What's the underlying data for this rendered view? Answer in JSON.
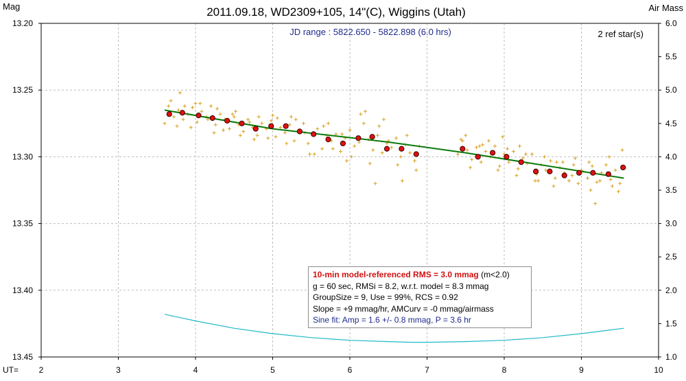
{
  "chart_data": {
    "type": "scatter",
    "title": "2011.09.18, WD2309+105, 14\"(C), Wiggins (Utah)",
    "ylabel": "Mag",
    "y2label": "Air Mass",
    "xlabel": "UT=",
    "xlim": [
      2,
      10
    ],
    "ylim": [
      13.45,
      13.2
    ],
    "y2lim": [
      1.0,
      6.0
    ],
    "x_ticks": [
      "2",
      "3",
      "4",
      "5",
      "6",
      "7",
      "8",
      "9",
      "10"
    ],
    "y_ticks": [
      "13.20",
      "13.25",
      "13.30",
      "13.35",
      "13.40",
      "13.45"
    ],
    "y2_ticks": [
      "6.0",
      "5.5",
      "5.0",
      "4.5",
      "4.0",
      "3.5",
      "3.0",
      "2.5",
      "2.0",
      "1.5",
      "1.0"
    ],
    "grid": true,
    "annotations": {
      "jd_range": "JD range : 5822.650 - 5822.898 (6.0 hrs)",
      "ref_stars": "2 ref star(s)"
    },
    "series": [
      {
        "name": "10-min averages",
        "color": "#e01010",
        "x": [
          3.66,
          3.83,
          4.04,
          4.22,
          4.41,
          4.6,
          4.78,
          4.98,
          5.17,
          5.35,
          5.53,
          5.72,
          5.91,
          6.11,
          6.29,
          6.48,
          6.67,
          6.86,
          7.46,
          7.66,
          7.85,
          8.03,
          8.22,
          8.41,
          8.59,
          8.78,
          8.97,
          9.15,
          9.35,
          9.54
        ],
        "y": [
          13.268,
          13.267,
          13.269,
          13.271,
          13.273,
          13.275,
          13.279,
          13.277,
          13.277,
          13.281,
          13.283,
          13.287,
          13.29,
          13.286,
          13.285,
          13.294,
          13.294,
          13.298,
          13.294,
          13.3,
          13.297,
          13.3,
          13.304,
          13.311,
          13.311,
          13.314,
          13.312,
          13.312,
          13.313,
          13.308
        ]
      },
      {
        "name": "model fit",
        "color": "#0a7a0a",
        "x": [
          3.6,
          5.0,
          6.5,
          7.5,
          9.55
        ],
        "y": [
          13.265,
          13.279,
          13.289,
          13.297,
          13.316
        ]
      },
      {
        "name": "air mass",
        "color": "#20b8c8",
        "axis": "y2",
        "x": [
          3.6,
          4.0,
          4.5,
          5.0,
          5.5,
          6.0,
          6.5,
          6.8,
          7.0,
          7.5,
          8.0,
          8.5,
          9.0,
          9.55
        ],
        "y": [
          1.64,
          1.54,
          1.43,
          1.35,
          1.29,
          1.25,
          1.23,
          1.22,
          1.22,
          1.23,
          1.25,
          1.29,
          1.35,
          1.43
        ]
      },
      {
        "name": "individual measurements",
        "color": "#d8a020",
        "marker": "+",
        "x": [
          3.6,
          3.65,
          3.72,
          3.78,
          3.84,
          3.9,
          3.96,
          4.02,
          4.08,
          4.14,
          4.2,
          4.26,
          4.32,
          4.38,
          4.44,
          4.5,
          4.56,
          4.62,
          4.68,
          4.74,
          4.8,
          4.86,
          4.92,
          4.98,
          5.04,
          5.1,
          5.16,
          5.22,
          5.28,
          5.34,
          5.4,
          5.46,
          5.52,
          5.58,
          5.64,
          5.7,
          5.76,
          5.82,
          5.88,
          5.94,
          6.0,
          6.06,
          6.12,
          6.18,
          6.24,
          6.3,
          6.36,
          6.42,
          6.48,
          6.54,
          6.6,
          6.66,
          6.72,
          6.78,
          6.84,
          6.9,
          7.4,
          7.46,
          7.52,
          7.58,
          7.64,
          7.7,
          7.76,
          7.82,
          7.88,
          7.94,
          8.0,
          8.06,
          8.12,
          8.18,
          8.24,
          8.3,
          8.36,
          8.42,
          8.48,
          8.54,
          8.6,
          8.66,
          8.72,
          8.78,
          8.84,
          8.9,
          8.96,
          9.02,
          9.08,
          9.14,
          9.2,
          9.26,
          9.32,
          9.38,
          9.44,
          9.5,
          3.68,
          3.76,
          3.86,
          3.94,
          4.06,
          4.16,
          4.28,
          4.36,
          4.48,
          4.58,
          4.7,
          4.82,
          4.94,
          5.06,
          5.18,
          5.3,
          5.42,
          5.54,
          5.66,
          5.78,
          5.9,
          6.02,
          6.14,
          6.26,
          6.38,
          6.5,
          6.62,
          6.74,
          6.86,
          7.44,
          7.56,
          7.68,
          7.8,
          7.92,
          8.04,
          8.16,
          8.28,
          8.4,
          8.52,
          8.64,
          8.76,
          8.88,
          9.0,
          9.12,
          9.24,
          9.36,
          9.48,
          3.8,
          4.0,
          4.24,
          4.52,
          4.76,
          5.0,
          5.24,
          5.48,
          5.72,
          5.96,
          6.2,
          6.33,
          6.44,
          6.68,
          7.5,
          7.72,
          7.98,
          8.2,
          8.44,
          8.68,
          8.92,
          9.1,
          9.18,
          9.4,
          9.53
        ],
        "y": [
          13.275,
          13.262,
          13.27,
          13.265,
          13.272,
          13.268,
          13.263,
          13.274,
          13.266,
          13.27,
          13.262,
          13.276,
          13.268,
          13.272,
          13.279,
          13.27,
          13.276,
          13.281,
          13.272,
          13.278,
          13.284,
          13.275,
          13.279,
          13.273,
          13.285,
          13.278,
          13.282,
          13.276,
          13.288,
          13.28,
          13.275,
          13.29,
          13.283,
          13.279,
          13.294,
          13.284,
          13.288,
          13.283,
          13.296,
          13.286,
          13.28,
          13.292,
          13.289,
          13.275,
          13.287,
          13.295,
          13.284,
          13.297,
          13.29,
          13.293,
          13.286,
          13.3,
          13.291,
          13.297,
          13.303,
          13.292,
          13.298,
          13.288,
          13.295,
          13.302,
          13.293,
          13.304,
          13.296,
          13.3,
          13.292,
          13.307,
          13.298,
          13.304,
          13.296,
          13.309,
          13.301,
          13.305,
          13.298,
          13.313,
          13.306,
          13.31,
          13.303,
          13.316,
          13.308,
          13.312,
          13.318,
          13.306,
          13.32,
          13.311,
          13.316,
          13.307,
          13.319,
          13.312,
          13.306,
          13.317,
          13.31,
          13.32,
          13.258,
          13.277,
          13.262,
          13.278,
          13.26,
          13.272,
          13.264,
          13.28,
          13.268,
          13.284,
          13.274,
          13.27,
          13.286,
          13.271,
          13.29,
          13.272,
          13.282,
          13.298,
          13.277,
          13.294,
          13.283,
          13.3,
          13.268,
          13.305,
          13.277,
          13.288,
          13.306,
          13.284,
          13.31,
          13.287,
          13.308,
          13.292,
          13.288,
          13.31,
          13.294,
          13.314,
          13.298,
          13.318,
          13.3,
          13.322,
          13.304,
          13.314,
          13.31,
          13.325,
          13.318,
          13.3,
          13.326,
          13.252,
          13.26,
          13.282,
          13.266,
          13.287,
          13.269,
          13.27,
          13.298,
          13.275,
          13.303,
          13.266,
          13.32,
          13.272,
          13.318,
          13.284,
          13.291,
          13.285,
          13.292,
          13.318,
          13.304,
          13.301,
          13.304,
          13.335,
          13.322,
          13.295
        ]
      }
    ]
  },
  "info": {
    "rms_label": "10-min model-referenced RMS = 3.0 mmag",
    "rms_suffix": " (m<2.0)",
    "line2": "g = 60 sec, RMSi = 8.2, w.r.t. model = 8.3 mmag",
    "line3": "GroupSize = 9, Use = 99%, RCS = 0.92",
    "line4": "Slope = +9 mmag/hr, AMCurv = -0 mmag/airmass",
    "line5": "Sine fit: Amp = 1.6 +/- 0.8 mmag, P = 3.6 hr"
  }
}
